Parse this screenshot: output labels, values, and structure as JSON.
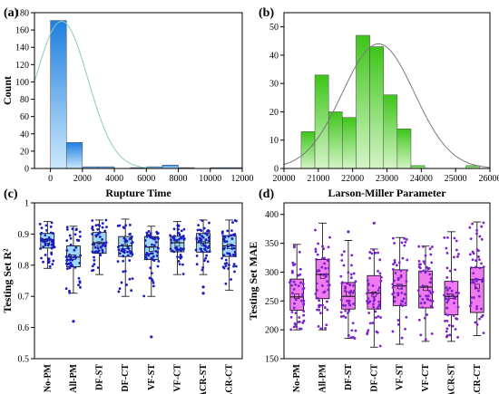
{
  "chart_data": [
    {
      "panel": "(a)",
      "type": "bar",
      "xlabel": "Rupture Time",
      "ylabel": "Count",
      "xlim": [
        -1000,
        12000
      ],
      "ylim": [
        0,
        180
      ],
      "xticks": [
        0,
        2000,
        4000,
        6000,
        8000,
        10000,
        12000
      ],
      "yticks": [
        0,
        20,
        40,
        60,
        80,
        100,
        120,
        140,
        160,
        180
      ],
      "bins": [
        {
          "x0": 0,
          "x1": 1000,
          "count": 171
        },
        {
          "x0": 1000,
          "x1": 2000,
          "count": 30
        },
        {
          "x0": 2000,
          "x1": 3000,
          "count": 2
        },
        {
          "x0": 3000,
          "x1": 4000,
          "count": 2
        },
        {
          "x0": 4000,
          "x1": 5000,
          "count": 0
        },
        {
          "x0": 5000,
          "x1": 6000,
          "count": 1
        },
        {
          "x0": 6000,
          "x1": 7000,
          "count": 2
        },
        {
          "x0": 7000,
          "x1": 8000,
          "count": 4
        },
        {
          "x0": 8000,
          "x1": 9000,
          "count": 1
        },
        {
          "x0": 9000,
          "x1": 10000,
          "count": 0
        },
        {
          "x0": 10000,
          "x1": 11000,
          "count": 1
        },
        {
          "x0": 11000,
          "x1": 12000,
          "count": 1
        }
      ],
      "fit": {
        "kind": "normal",
        "mean": 700,
        "sd": 1650,
        "peak": 170
      },
      "colors": {
        "bar_top": "#1f7fe0",
        "bar_bottom": "#cbe8fb",
        "curve": "#8fc9c5"
      }
    },
    {
      "panel": "(b)",
      "type": "bar",
      "xlabel": "Larson-Miller Parameter",
      "ylabel": "",
      "xlim": [
        20000,
        26000
      ],
      "ylim": [
        0,
        55
      ],
      "xticks": [
        20000,
        21000,
        22000,
        23000,
        24000,
        25000,
        26000
      ],
      "yticks": [
        0,
        10,
        20,
        30,
        40,
        50
      ],
      "bins": [
        {
          "x0": 20500,
          "x1": 20900,
          "count": 13
        },
        {
          "x0": 20900,
          "x1": 21300,
          "count": 33
        },
        {
          "x0": 21300,
          "x1": 21700,
          "count": 20
        },
        {
          "x0": 21700,
          "x1": 22100,
          "count": 18
        },
        {
          "x0": 22100,
          "x1": 22500,
          "count": 47
        },
        {
          "x0": 22500,
          "x1": 22900,
          "count": 43
        },
        {
          "x0": 22900,
          "x1": 23300,
          "count": 26
        },
        {
          "x0": 23300,
          "x1": 23700,
          "count": 14
        },
        {
          "x0": 23700,
          "x1": 24100,
          "count": 1
        },
        {
          "x0": 25300,
          "x1": 25700,
          "count": 1
        }
      ],
      "fit": {
        "kind": "normal",
        "mean": 22750,
        "sd": 1050,
        "peak": 44
      },
      "colors": {
        "bar_top": "#3ec51a",
        "bar_bottom": "#d4f5c6",
        "curve": "#7a7a7a"
      }
    },
    {
      "panel": "(c)",
      "type": "box",
      "xlabel": "",
      "ylabel": "Testing Set R²",
      "ylim": [
        0.5,
        1.0
      ],
      "yticks": [
        0.5,
        0.6,
        0.7,
        0.8,
        0.9,
        1.0
      ],
      "categories": [
        "No-PM",
        "All-PM",
        "DF-ST",
        "DF-CT",
        "VF-ST",
        "VF-CT",
        "ACR-ST",
        "ACR-CT"
      ],
      "boxes": [
        {
          "min": 0.79,
          "q1": 0.855,
          "median": 0.882,
          "q3": 0.902,
          "max": 0.94,
          "mean": 0.878,
          "outliers": []
        },
        {
          "min": 0.71,
          "q1": 0.795,
          "median": 0.826,
          "q3": 0.862,
          "max": 0.925,
          "mean": 0.826,
          "outliers": [
            0.62
          ]
        },
        {
          "min": 0.77,
          "q1": 0.838,
          "median": 0.872,
          "q3": 0.905,
          "max": 0.945,
          "mean": 0.868,
          "outliers": []
        },
        {
          "min": 0.7,
          "q1": 0.828,
          "median": 0.862,
          "q3": 0.892,
          "max": 0.948,
          "mean": 0.86,
          "outliers": []
        },
        {
          "min": 0.7,
          "q1": 0.818,
          "median": 0.858,
          "q3": 0.892,
          "max": 0.925,
          "mean": 0.852,
          "outliers": [
            0.57
          ]
        },
        {
          "min": 0.77,
          "q1": 0.843,
          "median": 0.872,
          "q3": 0.893,
          "max": 0.94,
          "mean": 0.868,
          "outliers": []
        },
        {
          "min": 0.77,
          "q1": 0.842,
          "median": 0.872,
          "q3": 0.902,
          "max": 0.945,
          "mean": 0.87,
          "outliers": [
            0.71,
            0.73
          ]
        },
        {
          "min": 0.72,
          "q1": 0.828,
          "median": 0.862,
          "q3": 0.895,
          "max": 0.945,
          "mean": 0.86,
          "outliers": []
        }
      ],
      "colors": {
        "box_fill": "#9fd8f6",
        "points": "#1d1dbf"
      }
    },
    {
      "panel": "(d)",
      "type": "box",
      "xlabel": "",
      "ylabel": "Testing Set MAE",
      "ylim": [
        150,
        420
      ],
      "yticks": [
        150,
        200,
        250,
        300,
        350,
        400
      ],
      "categories": [
        "No-PM",
        "All-PM",
        "DF-ST",
        "DF-CT",
        "VF-ST",
        "VF-CT",
        "ACR-ST",
        "ACR-CT"
      ],
      "boxes": [
        {
          "min": 200,
          "q1": 234,
          "median": 257,
          "q3": 288,
          "max": 348,
          "mean": 258,
          "outliers": []
        },
        {
          "min": 200,
          "q1": 254,
          "median": 296,
          "q3": 322,
          "max": 385,
          "mean": 293,
          "outliers": []
        },
        {
          "min": 185,
          "q1": 236,
          "median": 258,
          "q3": 282,
          "max": 355,
          "mean": 262,
          "outliers": [
            370
          ]
        },
        {
          "min": 170,
          "q1": 236,
          "median": 264,
          "q3": 294,
          "max": 340,
          "mean": 262,
          "outliers": [
            385
          ]
        },
        {
          "min": 175,
          "q1": 242,
          "median": 276,
          "q3": 304,
          "max": 360,
          "mean": 275,
          "outliers": []
        },
        {
          "min": 180,
          "q1": 238,
          "median": 274,
          "q3": 302,
          "max": 345,
          "mean": 272,
          "outliers": []
        },
        {
          "min": 180,
          "q1": 226,
          "median": 258,
          "q3": 284,
          "max": 370,
          "mean": 258,
          "outliers": []
        },
        {
          "min": 190,
          "q1": 230,
          "median": 287,
          "q3": 308,
          "max": 387,
          "mean": 275,
          "outliers": []
        }
      ],
      "colors": {
        "box_fill": "#f07bf0",
        "points": "#7a22cc"
      }
    }
  ]
}
